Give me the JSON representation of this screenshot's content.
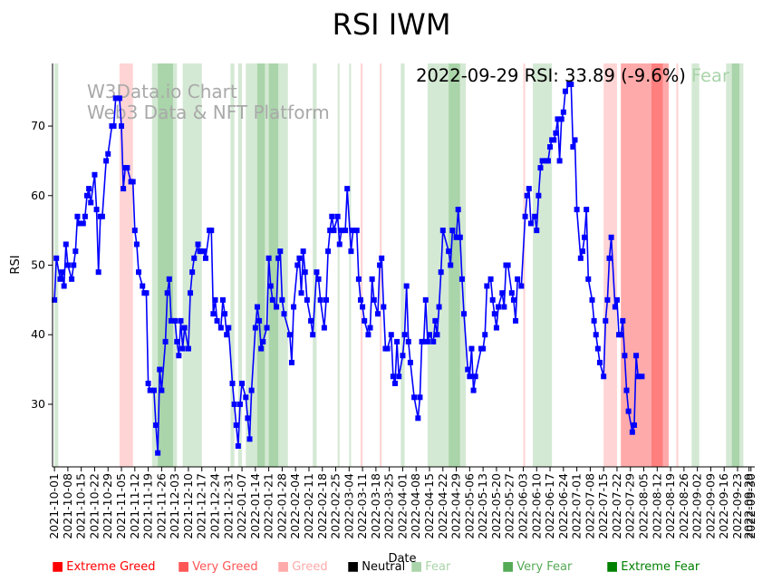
{
  "chart_data": {
    "type": "line",
    "title": "RSI IWM",
    "xlabel": "Date",
    "ylabel": "RSI",
    "ylim": [
      21,
      79
    ],
    "yticks": [
      30,
      40,
      50,
      60,
      70
    ],
    "xlim": [
      -1,
      366
    ],
    "watermark_line1": "W3Data.io Chart",
    "watermark_line2": "Web3 Data & NFT Platform",
    "annotation": {
      "date_rsi": "2022-09-29 RSI: 33.89 (-9.6%)",
      "sentiment": "Fear"
    },
    "xtick_labels": [
      "2021-10-01",
      "2021-10-08",
      "2021-10-15",
      "2021-10-22",
      "2021-10-29",
      "2021-11-05",
      "2021-11-12",
      "2021-11-19",
      "2021-11-26",
      "2021-12-03",
      "2021-12-10",
      "2021-12-17",
      "2021-12-24",
      "2021-12-31",
      "2022-01-07",
      "2022-01-14",
      "2022-01-21",
      "2022-01-28",
      "2022-02-04",
      "2022-02-11",
      "2022-02-18",
      "2022-02-25",
      "2022-03-04",
      "2022-03-11",
      "2022-03-18",
      "2022-03-25",
      "2022-04-01",
      "2022-04-08",
      "2022-04-15",
      "2022-04-22",
      "2022-04-29",
      "2022-05-06",
      "2022-05-13",
      "2022-05-20",
      "2022-05-27",
      "2022-06-03",
      "2022-06-10",
      "2022-06-17",
      "2022-06-24",
      "2022-07-01",
      "2022-07-08",
      "2022-07-15",
      "2022-07-22",
      "2022-07-29",
      "2022-08-05",
      "2022-08-12",
      "2022-08-19",
      "2022-08-26",
      "2022-09-02",
      "2022-09-09",
      "2022-09-16",
      "2022-09-23",
      "2022-09-30",
      "2022-09-29"
    ],
    "legend": [
      {
        "label": "Extreme Greed",
        "color": "#ff0000"
      },
      {
        "label": "Very Greed",
        "color": "#ff5555"
      },
      {
        "label": "Greed",
        "color": "#ffaaaa"
      },
      {
        "label": "Neutral",
        "color": "#000000"
      },
      {
        "label": "Fear",
        "color": "#aad4aa"
      },
      {
        "label": "Very Fear",
        "color": "#55aa55"
      },
      {
        "label": "Extreme Fear",
        "color": "#008000"
      }
    ],
    "bands": [
      {
        "from": 0,
        "to": 2,
        "level": "Fear"
      },
      {
        "from": 34,
        "to": 41,
        "level": "Greed"
      },
      {
        "from": 51,
        "to": 54,
        "level": "Fear"
      },
      {
        "from": 54,
        "to": 62,
        "level": "Very Fear"
      },
      {
        "from": 62,
        "to": 64,
        "level": "Fear"
      },
      {
        "from": 67,
        "to": 70,
        "level": "Fear"
      },
      {
        "from": 70,
        "to": 77,
        "level": "Fear"
      },
      {
        "from": 92,
        "to": 94,
        "level": "Fear"
      },
      {
        "from": 96,
        "to": 98,
        "level": "Fear"
      },
      {
        "from": 100,
        "to": 106,
        "level": "Fear"
      },
      {
        "from": 106,
        "to": 110,
        "level": "Very Fear"
      },
      {
        "from": 110,
        "to": 112,
        "level": "Fear"
      },
      {
        "from": 112,
        "to": 117,
        "level": "Very Fear"
      },
      {
        "from": 117,
        "to": 122,
        "level": "Fear"
      },
      {
        "from": 135,
        "to": 137,
        "level": "Fear"
      },
      {
        "from": 148,
        "to": 149,
        "level": "Fear"
      },
      {
        "from": 154,
        "to": 155,
        "level": "Fear"
      },
      {
        "from": 160,
        "to": 161,
        "level": "Greed"
      },
      {
        "from": 170,
        "to": 171,
        "level": "Greed"
      },
      {
        "from": 181,
        "to": 183,
        "level": "Fear"
      },
      {
        "from": 195,
        "to": 206,
        "level": "Fear"
      },
      {
        "from": 206,
        "to": 212,
        "level": "Very Fear"
      },
      {
        "from": 212,
        "to": 215,
        "level": "Fear"
      },
      {
        "from": 245,
        "to": 246,
        "level": "Greed"
      },
      {
        "from": 250,
        "to": 260,
        "level": "Fear"
      },
      {
        "from": 287,
        "to": 294,
        "level": "Greed"
      },
      {
        "from": 296,
        "to": 312,
        "level": "Very Greed"
      },
      {
        "from": 312,
        "to": 318,
        "level": "Extreme Greed"
      },
      {
        "from": 318,
        "to": 321,
        "level": "Very Greed"
      },
      {
        "from": 325,
        "to": 326,
        "level": "Greed"
      },
      {
        "from": 333,
        "to": 337,
        "level": "Fear"
      },
      {
        "from": 351,
        "to": 354,
        "level": "Fear"
      },
      {
        "from": 354,
        "to": 358,
        "level": "Very Fear"
      },
      {
        "from": 358,
        "to": 360,
        "level": "Fear"
      }
    ],
    "series": [
      {
        "name": "RSI",
        "color": "#0000ff",
        "points": [
          [
            0,
            45
          ],
          [
            1,
            51
          ],
          [
            3,
            48
          ],
          [
            4,
            49
          ],
          [
            5,
            47
          ],
          [
            6,
            53
          ],
          [
            7,
            50
          ],
          [
            9,
            48
          ],
          [
            10,
            50
          ],
          [
            11,
            52
          ],
          [
            12,
            57
          ],
          [
            13,
            56
          ],
          [
            15,
            56
          ],
          [
            16,
            57
          ],
          [
            17,
            60
          ],
          [
            18,
            61
          ],
          [
            19,
            59
          ],
          [
            21,
            63
          ],
          [
            22,
            58
          ],
          [
            23,
            49
          ],
          [
            24,
            57
          ],
          [
            25,
            57
          ],
          [
            27,
            65
          ],
          [
            28,
            66
          ],
          [
            30,
            70
          ],
          [
            31,
            70
          ],
          [
            32,
            74
          ],
          [
            34,
            74
          ],
          [
            35,
            70
          ],
          [
            36,
            61
          ],
          [
            37,
            64
          ],
          [
            38,
            64
          ],
          [
            40,
            62
          ],
          [
            41,
            62
          ],
          [
            42,
            55
          ],
          [
            43,
            53
          ],
          [
            44,
            49
          ],
          [
            46,
            47
          ],
          [
            47,
            46
          ],
          [
            48,
            46
          ],
          [
            49,
            33
          ],
          [
            50,
            32
          ],
          [
            52,
            32
          ],
          [
            53,
            27
          ],
          [
            54,
            23
          ],
          [
            55,
            35
          ],
          [
            56,
            32
          ],
          [
            58,
            39
          ],
          [
            59,
            46
          ],
          [
            60,
            48
          ],
          [
            61,
            42
          ],
          [
            63,
            42
          ],
          [
            64,
            39
          ],
          [
            65,
            37
          ],
          [
            66,
            42
          ],
          [
            67,
            38
          ],
          [
            68,
            41
          ],
          [
            70,
            38
          ],
          [
            71,
            46
          ],
          [
            72,
            49
          ],
          [
            73,
            51
          ],
          [
            75,
            53
          ],
          [
            76,
            52
          ],
          [
            77,
            52
          ],
          [
            78,
            52
          ],
          [
            79,
            51
          ],
          [
            81,
            55
          ],
          [
            82,
            55
          ],
          [
            83,
            43
          ],
          [
            84,
            45
          ],
          [
            85,
            42
          ],
          [
            87,
            41
          ],
          [
            88,
            45
          ],
          [
            89,
            43
          ],
          [
            90,
            40
          ],
          [
            91,
            41
          ],
          [
            93,
            33
          ],
          [
            94,
            30
          ],
          [
            95,
            27
          ],
          [
            96,
            24
          ],
          [
            97,
            30
          ],
          [
            98,
            33
          ],
          [
            100,
            31
          ],
          [
            101,
            28
          ],
          [
            102,
            25
          ],
          [
            103,
            32
          ],
          [
            105,
            41
          ],
          [
            106,
            44
          ],
          [
            107,
            42
          ],
          [
            108,
            38
          ],
          [
            109,
            39
          ],
          [
            111,
            41
          ],
          [
            112,
            51
          ],
          [
            113,
            47
          ],
          [
            114,
            45
          ],
          [
            116,
            44
          ],
          [
            117,
            51
          ],
          [
            118,
            52
          ],
          [
            119,
            45
          ],
          [
            120,
            43
          ],
          [
            123,
            40
          ],
          [
            124,
            36
          ],
          [
            125,
            44
          ],
          [
            127,
            50
          ],
          [
            128,
            51
          ],
          [
            129,
            46
          ],
          [
            130,
            52
          ],
          [
            131,
            49
          ],
          [
            132,
            45
          ],
          [
            134,
            42
          ],
          [
            135,
            40
          ],
          [
            137,
            49
          ],
          [
            138,
            48
          ],
          [
            139,
            45
          ],
          [
            141,
            41
          ],
          [
            142,
            45
          ],
          [
            143,
            52
          ],
          [
            144,
            55
          ],
          [
            145,
            57
          ],
          [
            146,
            55
          ],
          [
            148,
            57
          ],
          [
            149,
            53
          ],
          [
            150,
            55
          ],
          [
            152,
            55
          ],
          [
            153,
            61
          ],
          [
            155,
            52
          ],
          [
            156,
            55
          ],
          [
            158,
            55
          ],
          [
            159,
            48
          ],
          [
            160,
            45
          ],
          [
            161,
            44
          ],
          [
            162,
            42
          ],
          [
            164,
            40
          ],
          [
            165,
            41
          ],
          [
            166,
            48
          ],
          [
            167,
            45
          ],
          [
            169,
            43
          ],
          [
            170,
            50
          ],
          [
            171,
            51
          ],
          [
            172,
            44
          ],
          [
            173,
            38
          ],
          [
            174,
            38
          ],
          [
            176,
            40
          ],
          [
            177,
            34
          ],
          [
            178,
            33
          ],
          [
            179,
            39
          ],
          [
            180,
            34
          ],
          [
            182,
            37
          ],
          [
            183,
            40
          ],
          [
            184,
            47
          ],
          [
            185,
            39
          ],
          [
            186,
            36
          ],
          [
            188,
            31
          ],
          [
            190,
            28
          ],
          [
            191,
            31
          ],
          [
            192,
            39
          ],
          [
            193,
            39
          ],
          [
            194,
            45
          ],
          [
            195,
            39
          ],
          [
            196,
            40
          ],
          [
            198,
            39
          ],
          [
            199,
            42
          ],
          [
            200,
            40
          ],
          [
            201,
            44
          ],
          [
            202,
            49
          ],
          [
            203,
            55
          ],
          [
            206,
            52
          ],
          [
            207,
            50
          ],
          [
            208,
            55
          ],
          [
            210,
            54
          ],
          [
            211,
            58
          ],
          [
            212,
            54
          ],
          [
            213,
            48
          ],
          [
            214,
            43
          ],
          [
            216,
            35
          ],
          [
            217,
            34
          ],
          [
            218,
            38
          ],
          [
            219,
            32
          ],
          [
            220,
            34
          ],
          [
            223,
            38
          ],
          [
            224,
            38
          ],
          [
            225,
            40
          ],
          [
            226,
            47
          ],
          [
            228,
            48
          ],
          [
            229,
            45
          ],
          [
            230,
            43
          ],
          [
            231,
            41
          ],
          [
            232,
            44
          ],
          [
            234,
            46
          ],
          [
            235,
            44
          ],
          [
            236,
            50
          ],
          [
            237,
            50
          ],
          [
            239,
            46
          ],
          [
            240,
            45
          ],
          [
            241,
            42
          ],
          [
            242,
            48
          ],
          [
            244,
            47
          ],
          [
            246,
            57
          ],
          [
            247,
            60
          ],
          [
            248,
            61
          ],
          [
            249,
            56
          ],
          [
            251,
            57
          ],
          [
            252,
            55
          ],
          [
            253,
            60
          ],
          [
            254,
            64
          ],
          [
            255,
            65
          ],
          [
            257,
            65
          ],
          [
            258,
            65
          ],
          [
            259,
            67
          ],
          [
            260,
            68
          ],
          [
            261,
            68
          ],
          [
            262,
            69
          ],
          [
            263,
            71
          ],
          [
            264,
            65
          ],
          [
            265,
            71
          ],
          [
            266,
            72
          ],
          [
            267,
            75
          ],
          [
            269,
            76
          ],
          [
            270,
            76
          ],
          [
            271,
            67
          ],
          [
            272,
            68
          ],
          [
            273,
            58
          ],
          [
            275,
            51
          ],
          [
            276,
            52
          ],
          [
            277,
            54
          ],
          [
            278,
            58
          ],
          [
            279,
            48
          ],
          [
            281,
            45
          ],
          [
            282,
            42
          ],
          [
            283,
            40
          ],
          [
            284,
            38
          ],
          [
            285,
            36
          ],
          [
            287,
            34
          ],
          [
            288,
            42
          ],
          [
            289,
            45
          ],
          [
            290,
            51
          ],
          [
            291,
            54
          ],
          [
            293,
            44
          ],
          [
            294,
            45
          ],
          [
            295,
            40
          ],
          [
            296,
            40
          ],
          [
            297,
            42
          ],
          [
            298,
            37
          ],
          [
            299,
            32
          ],
          [
            300,
            29
          ],
          [
            302,
            26
          ],
          [
            303,
            27
          ],
          [
            304,
            37
          ],
          [
            305,
            34
          ],
          [
            307,
            34
          ]
        ]
      }
    ]
  }
}
